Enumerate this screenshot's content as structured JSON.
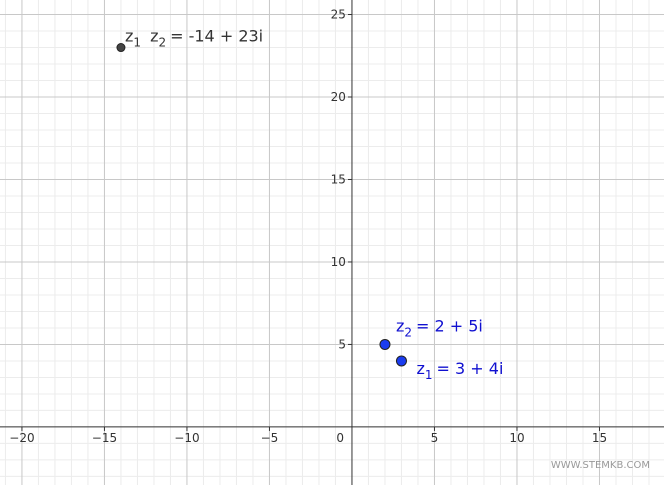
{
  "chart_data": {
    "type": "scatter",
    "xlim": [
      -21.33,
      18.91
    ],
    "ylim": [
      -3.52,
      25.88
    ],
    "xticks": [
      {
        "value": -20,
        "label": "−20"
      },
      {
        "value": -15,
        "label": "−15"
      },
      {
        "value": -10,
        "label": "−10"
      },
      {
        "value": -5,
        "label": "−5"
      },
      0,
      5,
      10,
      15
    ],
    "yticks": [
      5,
      10,
      15,
      20,
      25
    ],
    "grid": true,
    "points": [
      {
        "x": 3,
        "y": 4,
        "color": "#1a3cf0",
        "label_color": "#1010d0",
        "label": [
          "z",
          "1",
          "= 3 + 4i"
        ]
      },
      {
        "x": 2,
        "y": 5,
        "color": "#1a3cf0",
        "label_color": "#1010d0",
        "label": [
          "z",
          "2",
          "= 2 + 5i"
        ]
      },
      {
        "x": -14,
        "y": 23,
        "color": "#444444",
        "label_color": "#333333",
        "label": [
          "z",
          "1",
          " z",
          "2",
          "= -14 + 23i"
        ]
      }
    ],
    "watermark": "WWW.STEMKB.COM"
  }
}
